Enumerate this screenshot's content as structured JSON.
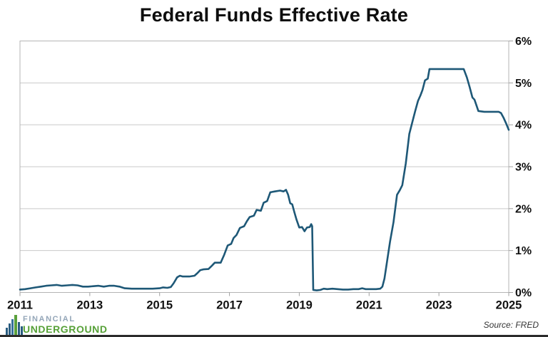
{
  "title": "Federal Funds Effective Rate",
  "source_note": "Source: FRED",
  "logo": {
    "line1": "FINANCIAL",
    "line2": "UNDERGROUND",
    "line1_color": "#94a6b8",
    "line2_color": "#56a037",
    "icon": "skyline-bars-icon"
  },
  "colors": {
    "line": "#1e5877",
    "gridline": "#c9c9c9",
    "plot_border": "#b5b5b5",
    "tick": "#9f9f9f",
    "axis_label": "#111111"
  },
  "chart_data": {
    "type": "line",
    "title": "Federal Funds Effective Rate",
    "xlabel": "",
    "ylabel": "",
    "xlim": [
      2011,
      2025
    ],
    "ylim": [
      0,
      6
    ],
    "x_tick_labels": [
      "2011",
      "2013",
      "2015",
      "2017",
      "2019",
      "2021",
      "2023",
      "2025"
    ],
    "x_tick_values": [
      2011,
      2013,
      2015,
      2017,
      2019,
      2021,
      2023,
      2025
    ],
    "y_tick_labels": [
      "0%",
      "1%",
      "2%",
      "3%",
      "4%",
      "5%",
      "6%"
    ],
    "y_tick_values": [
      0,
      1,
      2,
      3,
      4,
      5,
      6
    ],
    "grid": "horizontal",
    "legend": "none",
    "y_axis_side": "right",
    "series": [
      {
        "name": "Federal Funds Effective Rate",
        "points": [
          [
            2011.0,
            0.07
          ],
          [
            2011.15,
            0.08
          ],
          [
            2011.3,
            0.1
          ],
          [
            2011.45,
            0.12
          ],
          [
            2011.6,
            0.14
          ],
          [
            2011.75,
            0.16
          ],
          [
            2011.9,
            0.17
          ],
          [
            2012.05,
            0.18
          ],
          [
            2012.2,
            0.16
          ],
          [
            2012.35,
            0.17
          ],
          [
            2012.5,
            0.18
          ],
          [
            2012.65,
            0.17
          ],
          [
            2012.8,
            0.14
          ],
          [
            2012.95,
            0.14
          ],
          [
            2013.1,
            0.15
          ],
          [
            2013.25,
            0.16
          ],
          [
            2013.4,
            0.14
          ],
          [
            2013.55,
            0.16
          ],
          [
            2013.7,
            0.16
          ],
          [
            2013.85,
            0.14
          ],
          [
            2014.0,
            0.1
          ],
          [
            2014.2,
            0.09
          ],
          [
            2014.4,
            0.09
          ],
          [
            2014.6,
            0.09
          ],
          [
            2014.8,
            0.09
          ],
          [
            2015.0,
            0.1
          ],
          [
            2015.1,
            0.12
          ],
          [
            2015.22,
            0.11
          ],
          [
            2015.32,
            0.13
          ],
          [
            2015.4,
            0.22
          ],
          [
            2015.5,
            0.36
          ],
          [
            2015.58,
            0.4
          ],
          [
            2015.66,
            0.38
          ],
          [
            2015.85,
            0.38
          ],
          [
            2016.0,
            0.4
          ],
          [
            2016.08,
            0.46
          ],
          [
            2016.16,
            0.53
          ],
          [
            2016.25,
            0.55
          ],
          [
            2016.4,
            0.56
          ],
          [
            2016.5,
            0.64
          ],
          [
            2016.58,
            0.71
          ],
          [
            2016.75,
            0.71
          ],
          [
            2016.85,
            0.9
          ],
          [
            2016.95,
            1.12
          ],
          [
            2017.05,
            1.16
          ],
          [
            2017.12,
            1.3
          ],
          [
            2017.2,
            1.37
          ],
          [
            2017.3,
            1.54
          ],
          [
            2017.42,
            1.58
          ],
          [
            2017.5,
            1.7
          ],
          [
            2017.58,
            1.8
          ],
          [
            2017.7,
            1.83
          ],
          [
            2017.78,
            1.97
          ],
          [
            2017.9,
            1.95
          ],
          [
            2017.98,
            2.14
          ],
          [
            2018.08,
            2.18
          ],
          [
            2018.17,
            2.39
          ],
          [
            2018.3,
            2.41
          ],
          [
            2018.45,
            2.43
          ],
          [
            2018.55,
            2.41
          ],
          [
            2018.62,
            2.45
          ],
          [
            2018.68,
            2.33
          ],
          [
            2018.74,
            2.13
          ],
          [
            2018.8,
            2.1
          ],
          [
            2018.86,
            1.91
          ],
          [
            2018.92,
            1.74
          ],
          [
            2019.0,
            1.55
          ],
          [
            2019.08,
            1.56
          ],
          [
            2019.15,
            1.46
          ],
          [
            2019.22,
            1.55
          ],
          [
            2019.3,
            1.56
          ],
          [
            2019.34,
            1.63
          ],
          [
            2019.37,
            1.58
          ],
          [
            2019.4,
            0.06
          ],
          [
            2019.5,
            0.05
          ],
          [
            2019.6,
            0.06
          ],
          [
            2019.7,
            0.09
          ],
          [
            2019.8,
            0.08
          ],
          [
            2019.95,
            0.09
          ],
          [
            2020.1,
            0.08
          ],
          [
            2020.25,
            0.07
          ],
          [
            2020.4,
            0.07
          ],
          [
            2020.55,
            0.08
          ],
          [
            2020.7,
            0.08
          ],
          [
            2020.8,
            0.1
          ],
          [
            2020.9,
            0.08
          ],
          [
            2021.05,
            0.08
          ],
          [
            2021.2,
            0.08
          ],
          [
            2021.32,
            0.09
          ],
          [
            2021.38,
            0.14
          ],
          [
            2021.44,
            0.33
          ],
          [
            2021.52,
            0.77
          ],
          [
            2021.6,
            1.21
          ],
          [
            2021.7,
            1.68
          ],
          [
            2021.8,
            2.33
          ],
          [
            2021.88,
            2.44
          ],
          [
            2021.95,
            2.56
          ],
          [
            2022.05,
            3.08
          ],
          [
            2022.15,
            3.78
          ],
          [
            2022.25,
            4.1
          ],
          [
            2022.32,
            4.33
          ],
          [
            2022.4,
            4.57
          ],
          [
            2022.47,
            4.7
          ],
          [
            2022.53,
            4.83
          ],
          [
            2022.6,
            5.06
          ],
          [
            2022.68,
            5.1
          ],
          [
            2022.73,
            5.33
          ],
          [
            2023.0,
            5.33
          ],
          [
            2023.35,
            5.33
          ],
          [
            2023.71,
            5.33
          ],
          [
            2023.8,
            5.13
          ],
          [
            2023.88,
            4.9
          ],
          [
            2023.96,
            4.65
          ],
          [
            2024.02,
            4.6
          ],
          [
            2024.08,
            4.45
          ],
          [
            2024.13,
            4.33
          ],
          [
            2024.3,
            4.31
          ],
          [
            2024.5,
            4.31
          ],
          [
            2024.71,
            4.31
          ],
          [
            2024.78,
            4.28
          ],
          [
            2024.85,
            4.17
          ],
          [
            2024.92,
            4.04
          ],
          [
            2025.0,
            3.88
          ]
        ]
      }
    ]
  }
}
